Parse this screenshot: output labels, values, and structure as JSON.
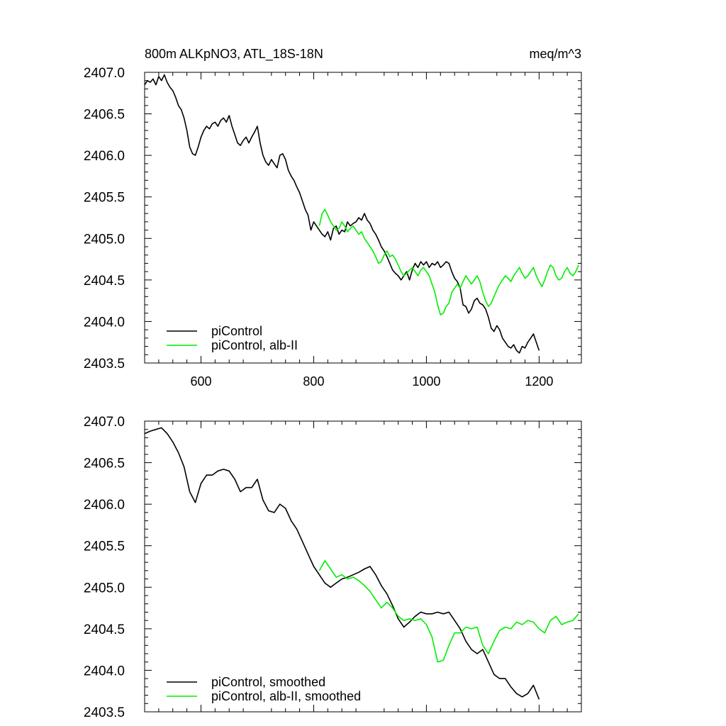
{
  "chart_data": [
    {
      "type": "line",
      "title_left": "800m ALKpNO3, ATL_18S-18N",
      "title_right": "meq/m^3",
      "xlim": [
        500,
        1275
      ],
      "ylim": [
        2403.5,
        2407.0
      ],
      "x_ticks": [
        600,
        800,
        1000,
        1200
      ],
      "x_tick_labels": [
        "600",
        "800",
        "1000",
        "1200"
      ],
      "y_ticks": [
        2403.5,
        2404.0,
        2404.5,
        2405.0,
        2405.5,
        2406.0,
        2406.5,
        2407.0
      ],
      "y_tick_labels": [
        "2403.5",
        "2404.0",
        "2404.5",
        "2405.0",
        "2405.5",
        "2406.0",
        "2406.5",
        "2407.0"
      ],
      "legend_position": "bottom-left",
      "series": [
        {
          "name": "piControl",
          "color": "#000000",
          "x": [
            500,
            505,
            510,
            515,
            520,
            525,
            530,
            535,
            540,
            545,
            550,
            555,
            560,
            565,
            570,
            575,
            580,
            585,
            590,
            595,
            600,
            605,
            610,
            615,
            620,
            625,
            630,
            635,
            640,
            645,
            650,
            655,
            660,
            665,
            670,
            675,
            680,
            685,
            690,
            695,
            700,
            705,
            710,
            715,
            720,
            725,
            730,
            735,
            740,
            745,
            750,
            755,
            760,
            765,
            770,
            775,
            780,
            785,
            790,
            795,
            800,
            805,
            810,
            815,
            820,
            825,
            830,
            835,
            840,
            845,
            850,
            855,
            860,
            865,
            870,
            875,
            880,
            885,
            890,
            895,
            900,
            905,
            910,
            915,
            920,
            925,
            930,
            935,
            940,
            945,
            950,
            955,
            960,
            965,
            970,
            975,
            980,
            985,
            990,
            995,
            1000,
            1005,
            1010,
            1015,
            1020,
            1025,
            1030,
            1035,
            1040,
            1045,
            1050,
            1055,
            1060,
            1065,
            1070,
            1075,
            1080,
            1085,
            1090,
            1095,
            1100,
            1105,
            1110,
            1115,
            1120,
            1125,
            1130,
            1135,
            1140,
            1145,
            1150,
            1155,
            1160,
            1165,
            1170,
            1175,
            1180,
            1185,
            1190,
            1195,
            1200
          ],
          "y": [
            2406.85,
            2406.9,
            2406.88,
            2406.92,
            2406.85,
            2406.95,
            2406.9,
            2406.97,
            2406.88,
            2406.82,
            2406.78,
            2406.7,
            2406.6,
            2406.55,
            2406.45,
            2406.3,
            2406.1,
            2406.02,
            2406.0,
            2406.1,
            2406.22,
            2406.3,
            2406.35,
            2406.32,
            2406.38,
            2406.4,
            2406.35,
            2406.42,
            2406.45,
            2406.4,
            2406.48,
            2406.35,
            2406.25,
            2406.15,
            2406.12,
            2406.18,
            2406.22,
            2406.15,
            2406.22,
            2406.28,
            2406.35,
            2406.15,
            2406.0,
            2405.92,
            2405.88,
            2405.95,
            2405.9,
            2405.85,
            2406.0,
            2406.02,
            2405.95,
            2405.82,
            2405.75,
            2405.7,
            2405.62,
            2405.55,
            2405.45,
            2405.35,
            2405.28,
            2405.1,
            2405.2,
            2405.15,
            2405.1,
            2405.05,
            2405.02,
            2405.08,
            2404.98,
            2405.12,
            2405.15,
            2405.05,
            2405.1,
            2405.08,
            2405.2,
            2405.15,
            2405.18,
            2405.2,
            2405.25,
            2405.22,
            2405.3,
            2405.22,
            2405.18,
            2405.1,
            2405.05,
            2404.98,
            2404.9,
            2404.85,
            2404.78,
            2404.7,
            2404.62,
            2404.58,
            2404.55,
            2404.5,
            2404.55,
            2404.6,
            2404.5,
            2404.62,
            2404.7,
            2404.65,
            2404.72,
            2404.68,
            2404.72,
            2404.65,
            2404.7,
            2404.68,
            2404.72,
            2404.65,
            2404.68,
            2404.72,
            2404.7,
            2404.6,
            2404.52,
            2404.48,
            2404.4,
            2404.2,
            2404.18,
            2404.1,
            2404.15,
            2404.25,
            2404.28,
            2404.22,
            2404.2,
            2404.15,
            2404.05,
            2403.92,
            2403.88,
            2403.95,
            2403.9,
            2403.8,
            2403.75,
            2403.7,
            2403.68,
            2403.72,
            2403.65,
            2403.62,
            2403.7,
            2403.68,
            2403.75,
            2403.8,
            2403.85,
            2403.75,
            2403.65
          ]
        },
        {
          "name": "piControl, alb-II",
          "color": "#00ee00",
          "x": [
            810,
            815,
            820,
            825,
            830,
            835,
            840,
            845,
            850,
            855,
            860,
            865,
            870,
            875,
            880,
            885,
            890,
            895,
            900,
            905,
            910,
            915,
            920,
            925,
            930,
            935,
            940,
            945,
            950,
            955,
            960,
            965,
            970,
            975,
            980,
            985,
            990,
            995,
            1000,
            1005,
            1010,
            1015,
            1020,
            1025,
            1030,
            1035,
            1040,
            1045,
            1050,
            1055,
            1060,
            1065,
            1070,
            1075,
            1080,
            1085,
            1090,
            1095,
            1100,
            1105,
            1110,
            1115,
            1120,
            1125,
            1130,
            1135,
            1140,
            1145,
            1150,
            1155,
            1160,
            1165,
            1170,
            1175,
            1180,
            1185,
            1190,
            1195,
            1200,
            1205,
            1210,
            1215,
            1220,
            1225,
            1230,
            1235,
            1240,
            1245,
            1250,
            1255,
            1260,
            1265,
            1270
          ],
          "y": [
            2405.15,
            2405.3,
            2405.35,
            2405.28,
            2405.2,
            2405.15,
            2405.1,
            2405.12,
            2405.2,
            2405.15,
            2405.08,
            2405.12,
            2405.15,
            2405.1,
            2405.05,
            2405.08,
            2405.0,
            2404.95,
            2404.9,
            2404.85,
            2404.78,
            2404.7,
            2404.72,
            2404.8,
            2404.85,
            2404.78,
            2404.8,
            2404.75,
            2404.68,
            2404.6,
            2404.55,
            2404.58,
            2404.62,
            2404.65,
            2404.6,
            2404.55,
            2404.62,
            2404.65,
            2404.6,
            2404.55,
            2404.45,
            2404.35,
            2404.2,
            2404.08,
            2404.1,
            2404.18,
            2404.22,
            2404.35,
            2404.4,
            2404.45,
            2404.4,
            2404.48,
            2404.55,
            2404.5,
            2404.45,
            2404.5,
            2404.55,
            2404.48,
            2404.35,
            2404.25,
            2404.18,
            2404.22,
            2404.3,
            2404.38,
            2404.45,
            2404.5,
            2404.55,
            2404.52,
            2404.48,
            2404.55,
            2404.6,
            2404.65,
            2404.58,
            2404.52,
            2404.55,
            2404.6,
            2404.65,
            2404.55,
            2404.48,
            2404.42,
            2404.5,
            2404.6,
            2404.68,
            2404.65,
            2404.55,
            2404.5,
            2404.52,
            2404.6,
            2404.65,
            2404.58,
            2404.55,
            2404.6,
            2404.68
          ]
        }
      ]
    },
    {
      "type": "line",
      "xlim": [
        500,
        1275
      ],
      "ylim": [
        2403.5,
        2407.0
      ],
      "x_ticks": [
        600,
        800,
        1000,
        1200
      ],
      "y_ticks": [
        2403.5,
        2404.0,
        2404.5,
        2405.0,
        2405.5,
        2406.0,
        2406.5,
        2407.0
      ],
      "y_tick_labels": [
        "2403.5",
        "2404.0",
        "2404.5",
        "2405.0",
        "2405.5",
        "2406.0",
        "2406.5",
        "2407.0"
      ],
      "legend_position": "bottom-left",
      "series": [
        {
          "name": "piControl, smoothed",
          "color": "#000000",
          "x": [
            500,
            510,
            520,
            530,
            540,
            550,
            560,
            570,
            580,
            590,
            600,
            610,
            620,
            630,
            640,
            650,
            660,
            670,
            680,
            690,
            700,
            710,
            720,
            730,
            740,
            750,
            760,
            770,
            780,
            790,
            800,
            810,
            820,
            830,
            840,
            850,
            860,
            870,
            880,
            890,
            900,
            910,
            920,
            930,
            940,
            950,
            960,
            970,
            980,
            990,
            1000,
            1010,
            1020,
            1030,
            1040,
            1050,
            1060,
            1070,
            1080,
            1090,
            1100,
            1110,
            1120,
            1130,
            1140,
            1150,
            1160,
            1170,
            1180,
            1190,
            1200
          ],
          "y": [
            2406.85,
            2406.88,
            2406.9,
            2406.92,
            2406.85,
            2406.75,
            2406.62,
            2406.45,
            2406.15,
            2406.02,
            2406.25,
            2406.35,
            2406.35,
            2406.4,
            2406.42,
            2406.4,
            2406.3,
            2406.15,
            2406.2,
            2406.2,
            2406.3,
            2406.05,
            2405.92,
            2405.9,
            2406.0,
            2405.95,
            2405.8,
            2405.7,
            2405.55,
            2405.4,
            2405.25,
            2405.15,
            2405.05,
            2405.0,
            2405.05,
            2405.1,
            2405.12,
            2405.15,
            2405.18,
            2405.22,
            2405.25,
            2405.15,
            2405.02,
            2404.92,
            2404.78,
            2404.62,
            2404.52,
            2404.58,
            2404.65,
            2404.7,
            2404.68,
            2404.68,
            2404.7,
            2404.68,
            2404.7,
            2404.6,
            2404.5,
            2404.35,
            2404.25,
            2404.2,
            2404.25,
            2404.1,
            2403.95,
            2403.9,
            2403.9,
            2403.8,
            2403.72,
            2403.68,
            2403.72,
            2403.82,
            2403.65
          ]
        },
        {
          "name": "piControl, alb-II, smoothed",
          "color": "#00ee00",
          "x": [
            810,
            820,
            830,
            840,
            850,
            860,
            870,
            880,
            890,
            900,
            910,
            920,
            930,
            940,
            950,
            960,
            970,
            980,
            990,
            1000,
            1010,
            1020,
            1030,
            1040,
            1050,
            1060,
            1070,
            1080,
            1090,
            1100,
            1110,
            1120,
            1130,
            1140,
            1150,
            1160,
            1170,
            1180,
            1190,
            1200,
            1210,
            1220,
            1230,
            1240,
            1250,
            1260,
            1270
          ],
          "y": [
            2405.2,
            2405.32,
            2405.22,
            2405.12,
            2405.15,
            2405.1,
            2405.12,
            2405.08,
            2405.02,
            2404.95,
            2404.85,
            2404.75,
            2404.82,
            2404.75,
            2404.65,
            2404.6,
            2404.62,
            2404.6,
            2404.62,
            2404.55,
            2404.4,
            2404.1,
            2404.12,
            2404.3,
            2404.45,
            2404.45,
            2404.52,
            2404.5,
            2404.52,
            2404.3,
            2404.2,
            2404.35,
            2404.48,
            2404.52,
            2404.5,
            2404.58,
            2404.55,
            2404.6,
            2404.58,
            2404.5,
            2404.45,
            2404.6,
            2404.65,
            2404.55,
            2404.58,
            2404.6,
            2404.68
          ]
        }
      ]
    }
  ]
}
